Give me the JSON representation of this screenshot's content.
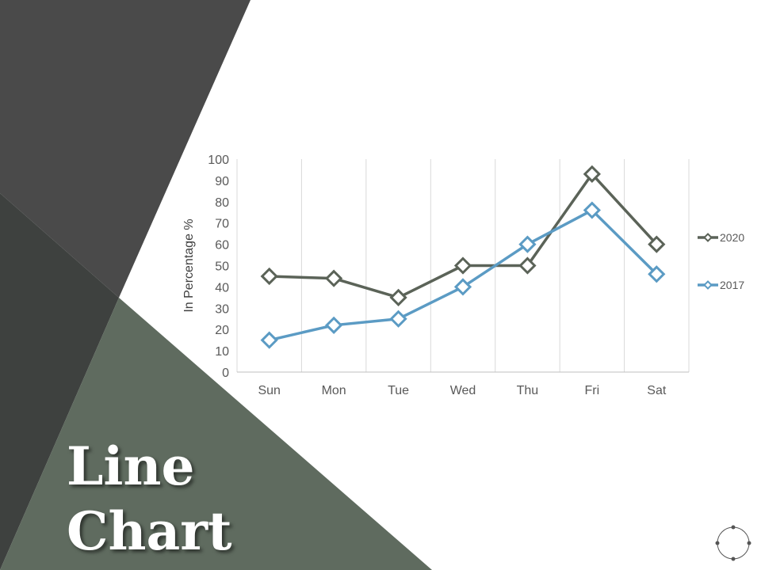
{
  "slide": {
    "title_line1": "Line",
    "title_line2": "Chart"
  },
  "colors": {
    "series_2020": "#5b6358",
    "series_2017": "#5b9bc4",
    "bg_dark": "#4a4a4a",
    "bg_darker": "#3e413f",
    "bg_green": "#5f6b5f"
  },
  "chart_data": {
    "type": "line",
    "categories": [
      "Sun",
      "Mon",
      "Tue",
      "Wed",
      "Thu",
      "Fri",
      "Sat"
    ],
    "series": [
      {
        "name": "2020",
        "color": "#5b6358",
        "values": [
          45,
          44,
          35,
          50,
          50,
          93,
          60
        ]
      },
      {
        "name": "2017",
        "color": "#5b9bc4",
        "values": [
          15,
          22,
          25,
          40,
          60,
          76,
          46
        ]
      }
    ],
    "title": "",
    "xlabel": "",
    "ylabel": "In Percentage %",
    "ylim": [
      0,
      100
    ],
    "yticks": [
      0,
      10,
      20,
      30,
      40,
      50,
      60,
      70,
      80,
      90,
      100
    ],
    "vertical_gridlines": true,
    "horizontal_gridlines": false,
    "legend_position": "right",
    "marker": "diamond"
  }
}
